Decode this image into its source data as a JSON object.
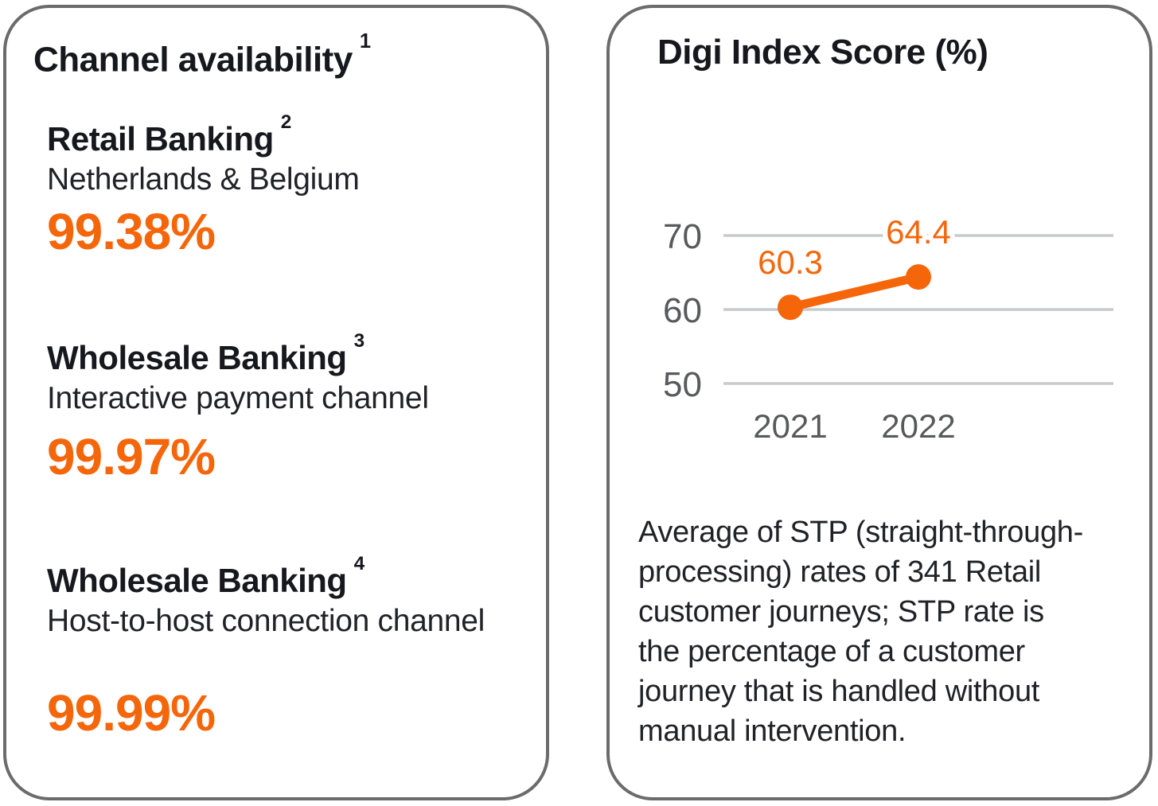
{
  "colors": {
    "accent": "#F5660B",
    "text_dark": "#17181D",
    "text_body": "#212227",
    "axis_gray": "#58595B",
    "gridline": "#C9CACB",
    "card_border": "#6B6B6B"
  },
  "left_card": {
    "title": "Channel availability",
    "title_superscript": "1",
    "metrics": [
      {
        "name": "Retail Banking",
        "superscript": "2",
        "subtitle": "Netherlands & Belgium",
        "value": "99.38%"
      },
      {
        "name": "Wholesale Banking",
        "superscript": "3",
        "subtitle": "Interactive payment channel",
        "value": "99.97%"
      },
      {
        "name": "Wholesale Banking",
        "superscript": "4",
        "subtitle": "Host-to-host connection channel",
        "value": "99.99%"
      }
    ]
  },
  "right_card": {
    "title": "Digi Index Score (%)",
    "note_lines": [
      "Average of STP (straight-through-",
      "processing) rates of 341 Retail",
      "customer journeys; STP rate is",
      "the percentage of a customer",
      "journey that is handled without",
      "manual intervention."
    ]
  },
  "chart_data": {
    "type": "line",
    "title": "Digi Index Score (%)",
    "categories": [
      "2021",
      "2022"
    ],
    "series": [
      {
        "name": "Digi Index Score",
        "values": [
          60.3,
          64.4
        ]
      }
    ],
    "data_labels": [
      "60.3",
      "64.4"
    ],
    "y_ticks": [
      70,
      60,
      50
    ],
    "ylim": [
      46,
      74
    ],
    "grid": true,
    "legend": false,
    "line_color": "#F5660B"
  }
}
